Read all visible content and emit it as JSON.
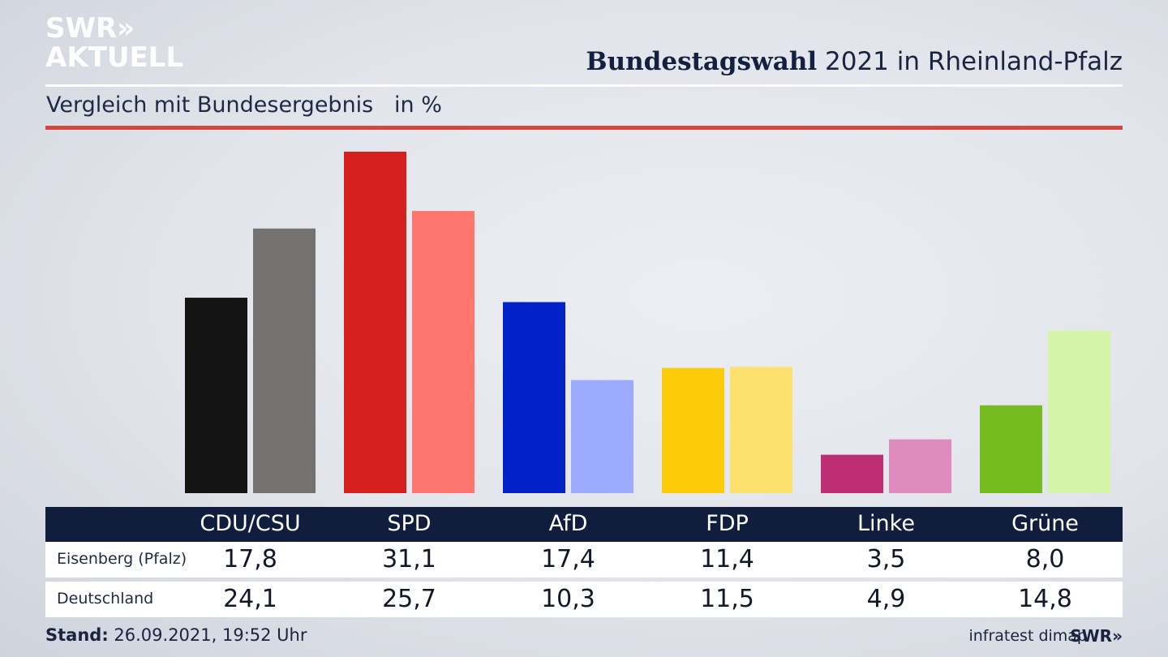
{
  "header": {
    "logo_line1": "SWR»",
    "logo_line2": "AKTUELL",
    "title_bold": "Bundestagswahl",
    "title_rest": " 2021 in Rheinland-Pfalz",
    "subtitle": "Vergleich mit Bundesergebnis   in %"
  },
  "footer": {
    "stand_label": "Stand:",
    "stand_value": " 26.09.2021, 19:52 Uhr",
    "source": "infratest dimap",
    "logo": "SWR»"
  },
  "chart_data": {
    "type": "bar",
    "categories": [
      "CDU/CSU",
      "SPD",
      "AfD",
      "FDP",
      "Linke",
      "Grüne"
    ],
    "series": [
      {
        "name": "Eisenberg (Pfalz)",
        "values": [
          17.8,
          31.1,
          17.4,
          11.4,
          3.5,
          8.0
        ],
        "labels": [
          "17,8",
          "31,1",
          "17,4",
          "11,4",
          "3,5",
          "8,0"
        ]
      },
      {
        "name": "Deutschland",
        "values": [
          24.1,
          25.7,
          10.3,
          11.5,
          4.9,
          14.8
        ],
        "labels": [
          "24,1",
          "25,7",
          "10,3",
          "11,5",
          "4,9",
          "14,8"
        ]
      }
    ],
    "colors": {
      "series1": [
        "#141414",
        "#d61f1f",
        "#0022c8",
        "#fccc0b",
        "#bd2e74",
        "#76bc21"
      ],
      "series2": [
        "#747270",
        "#ff7670",
        "#9dabff",
        "#fde16e",
        "#e08bbd",
        "#d4f5a8"
      ]
    },
    "ylim": [
      0,
      31.1
    ]
  }
}
